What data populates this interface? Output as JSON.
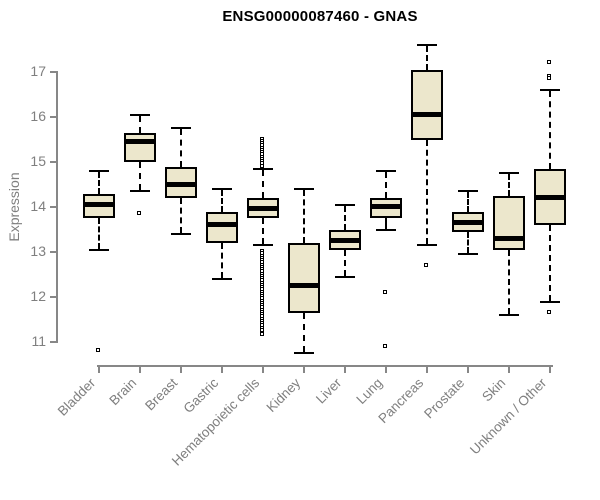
{
  "chart_data": {
    "type": "boxplot",
    "title": "ENSG00000087460 - GNAS",
    "ylabel": "Expression",
    "xlabel": "",
    "ylim": [
      11,
      17
    ],
    "yticks": [
      11,
      12,
      13,
      14,
      15,
      16,
      17
    ],
    "grid": false,
    "colors": {
      "box_fill": "#ece7cc",
      "box_border": "#000000",
      "median": "#000000",
      "whisker": "#000000",
      "axis": "#878787",
      "tick_label": "#7f7f7f",
      "title": "#000000"
    },
    "categories": [
      "Bladder",
      "Brain",
      "Breast",
      "Gastric",
      "Hematopoietic cells",
      "Kidney",
      "Liver",
      "Lung",
      "Pancreas",
      "Prostate",
      "Skin",
      "Unknown / Other"
    ],
    "boxes": [
      {
        "category": "Bladder",
        "low": 13.05,
        "q1": 13.75,
        "median": 14.05,
        "q3": 14.3,
        "high": 14.8,
        "outliers": [
          10.8
        ]
      },
      {
        "category": "Brain",
        "low": 14.35,
        "q1": 15.0,
        "median": 15.45,
        "q3": 15.65,
        "high": 16.05,
        "outliers": [
          13.85
        ]
      },
      {
        "category": "Breast",
        "low": 13.4,
        "q1": 14.2,
        "median": 14.5,
        "q3": 14.9,
        "high": 15.75,
        "outliers": []
      },
      {
        "category": "Gastric",
        "low": 12.4,
        "q1": 13.2,
        "median": 13.6,
        "q3": 13.9,
        "high": 14.4,
        "outliers": []
      },
      {
        "category": "Hematopoietic cells",
        "low": 13.15,
        "q1": 13.75,
        "median": 13.95,
        "q3": 14.2,
        "high": 14.85,
        "outliers": [
          15.5,
          15.45,
          15.4,
          15.35,
          15.3,
          15.25,
          15.2,
          15.15,
          15.1,
          15.05,
          15.0,
          14.95,
          14.9,
          13.0,
          12.95,
          12.9,
          12.85,
          12.8,
          12.75,
          12.7,
          12.65,
          12.6,
          12.55,
          12.5,
          12.45,
          12.4,
          12.35,
          12.3,
          12.25,
          12.2,
          12.15,
          12.1,
          12.05,
          12.0,
          11.95,
          11.9,
          11.85,
          11.8,
          11.75,
          11.7,
          11.65,
          11.6,
          11.55,
          11.5,
          11.45,
          11.4,
          11.35,
          11.3,
          11.25,
          11.15
        ]
      },
      {
        "category": "Kidney",
        "low": 10.75,
        "q1": 11.65,
        "median": 12.25,
        "q3": 13.2,
        "high": 14.4,
        "outliers": []
      },
      {
        "category": "Liver",
        "low": 12.45,
        "q1": 13.05,
        "median": 13.25,
        "q3": 13.5,
        "high": 14.05,
        "outliers": []
      },
      {
        "category": "Lung",
        "low": 13.5,
        "q1": 13.75,
        "median": 14.0,
        "q3": 14.2,
        "high": 14.8,
        "outliers": [
          12.1,
          10.9
        ]
      },
      {
        "category": "Pancreas",
        "low": 13.15,
        "q1": 15.5,
        "median": 16.05,
        "q3": 17.05,
        "high": 17.6,
        "outliers": [
          12.7
        ]
      },
      {
        "category": "Prostate",
        "low": 12.95,
        "q1": 13.45,
        "median": 13.65,
        "q3": 13.9,
        "high": 14.35,
        "outliers": []
      },
      {
        "category": "Skin",
        "low": 11.6,
        "q1": 13.05,
        "median": 13.3,
        "q3": 14.25,
        "high": 14.75,
        "outliers": []
      },
      {
        "category": "Unknown / Other",
        "low": 11.9,
        "q1": 13.6,
        "median": 14.2,
        "q3": 14.85,
        "high": 16.6,
        "outliers": [
          17.2,
          16.9,
          16.85,
          11.65
        ]
      }
    ]
  }
}
